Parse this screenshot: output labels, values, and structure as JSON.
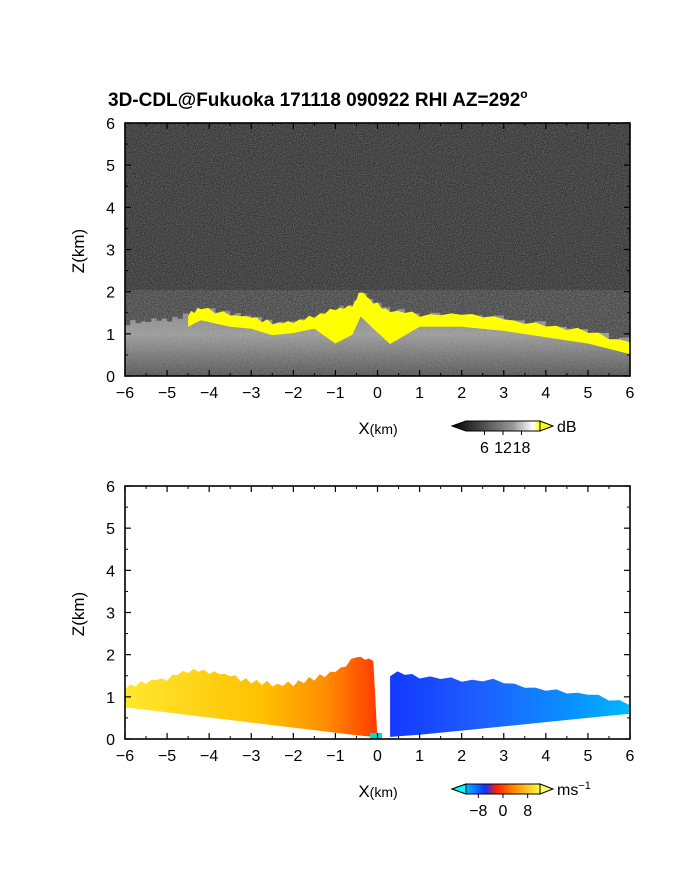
{
  "title": "3D-CDL@Fukuoka 171118 090922 RHI AZ=292",
  "title_degree": "o",
  "chart_data": [
    {
      "type": "heatmap",
      "name": "snr",
      "x_range": [
        -6,
        6
      ],
      "y_range": [
        0,
        6
      ],
      "x_ticks": [
        -6,
        -5,
        -4,
        -3,
        -2,
        -1,
        0,
        1,
        2,
        3,
        4,
        5,
        6
      ],
      "y_ticks": [
        0,
        1,
        2,
        3,
        4,
        5,
        6
      ],
      "xlabel_main": "X",
      "xlabel_unit": "(km)",
      "ylabel": "Z(km)",
      "colorbar": {
        "unit": "dB",
        "ticks": [
          6,
          12,
          18
        ]
      },
      "colors": {
        "background": "#1e1e1e",
        "signal": "#ffff00"
      },
      "echo_top_km": [
        {
          "x": -6.0,
          "z": 1.25
        },
        {
          "x": -5.5,
          "z": 1.3
        },
        {
          "x": -5.0,
          "z": 1.35
        },
        {
          "x": -4.5,
          "z": 1.45
        },
        {
          "x": -4.2,
          "z": 1.6
        },
        {
          "x": -3.5,
          "z": 1.45
        },
        {
          "x": -3.0,
          "z": 1.4
        },
        {
          "x": -2.5,
          "z": 1.25
        },
        {
          "x": -2.0,
          "z": 1.3
        },
        {
          "x": -1.5,
          "z": 1.4
        },
        {
          "x": -1.0,
          "z": 1.6
        },
        {
          "x": -0.6,
          "z": 1.65
        },
        {
          "x": -0.4,
          "z": 2.0
        },
        {
          "x": -0.1,
          "z": 1.75
        },
        {
          "x": 0.3,
          "z": 1.55
        },
        {
          "x": 1.0,
          "z": 1.45
        },
        {
          "x": 2.0,
          "z": 1.45
        },
        {
          "x": 3.0,
          "z": 1.35
        },
        {
          "x": 4.0,
          "z": 1.2
        },
        {
          "x": 5.0,
          "z": 1.05
        },
        {
          "x": 6.0,
          "z": 0.8
        }
      ]
    },
    {
      "type": "heatmap",
      "name": "radial_velocity",
      "x_range": [
        -6,
        6
      ],
      "y_range": [
        0,
        6
      ],
      "x_ticks": [
        -6,
        -5,
        -4,
        -3,
        -2,
        -1,
        0,
        1,
        2,
        3,
        4,
        5,
        6
      ],
      "y_ticks": [
        0,
        1,
        2,
        3,
        4,
        5,
        6
      ],
      "xlabel_main": "X",
      "xlabel_unit": "(km)",
      "ylabel": "Z(km)",
      "colorbar": {
        "unit": "ms",
        "unit_exp": "−1",
        "ticks": [
          -8,
          0,
          8
        ],
        "tick_labels": [
          "−8",
          "0",
          "8"
        ]
      },
      "colors": {
        "neg_strong": "#00b4ff",
        "neg": "#1e4cff",
        "zero": "#ff3300",
        "pos": "#ff8800",
        "pos_strong": "#ffe830"
      },
      "echo_top_km": [
        {
          "x": -6.0,
          "z": 1.2
        },
        {
          "x": -5.5,
          "z": 1.35
        },
        {
          "x": -5.0,
          "z": 1.45
        },
        {
          "x": -4.5,
          "z": 1.6
        },
        {
          "x": -4.0,
          "z": 1.6
        },
        {
          "x": -3.5,
          "z": 1.5
        },
        {
          "x": -3.0,
          "z": 1.35
        },
        {
          "x": -2.5,
          "z": 1.3
        },
        {
          "x": -2.0,
          "z": 1.3
        },
        {
          "x": -1.5,
          "z": 1.45
        },
        {
          "x": -1.0,
          "z": 1.6
        },
        {
          "x": -0.5,
          "z": 1.95
        },
        {
          "x": -0.1,
          "z": 1.85
        },
        {
          "x": 0.3,
          "z": 1.55
        },
        {
          "x": 1.0,
          "z": 1.5
        },
        {
          "x": 2.0,
          "z": 1.4
        },
        {
          "x": 3.0,
          "z": 1.35
        },
        {
          "x": 4.0,
          "z": 1.15
        },
        {
          "x": 5.0,
          "z": 1.05
        },
        {
          "x": 6.0,
          "z": 0.8
        }
      ]
    }
  ]
}
